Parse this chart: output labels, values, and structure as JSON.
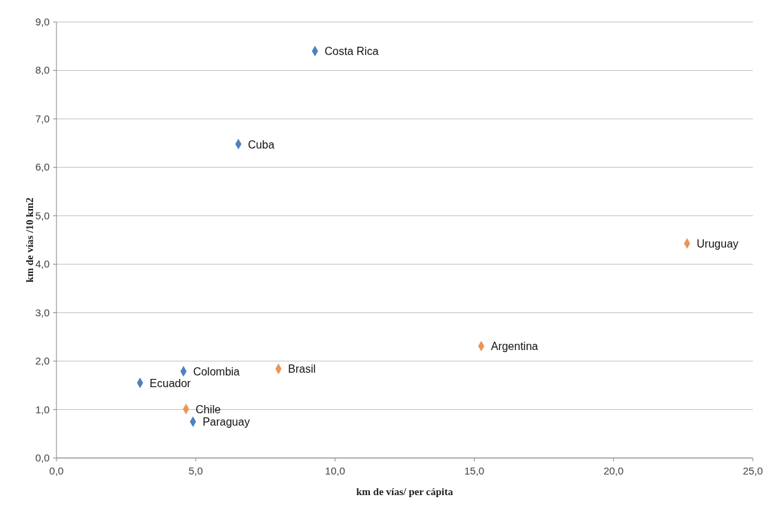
{
  "chart_data": {
    "type": "scatter",
    "xlabel": "km de vías/ per cápita",
    "ylabel": "km de vías /10 km2",
    "series": [
      {
        "color": "#4f81bd",
        "x": [
          9.28,
          6.53,
          4.56,
          3.0,
          4.9
        ],
        "values": [
          8.4,
          6.48,
          1.79,
          1.55,
          0.75
        ]
      },
      {
        "color": "#e9955a",
        "x": [
          22.64,
          15.25,
          7.97,
          4.65
        ],
        "values": [
          4.43,
          2.31,
          1.84,
          1.01
        ]
      }
    ],
    "annotations": [
      {
        "text": "Costa Rica",
        "x": 9.28,
        "y": 8.4
      },
      {
        "text": "Cuba",
        "x": 6.53,
        "y": 6.48
      },
      {
        "text": "Colombia",
        "x": 4.56,
        "y": 1.79
      },
      {
        "text": "Ecuador",
        "x": 3.0,
        "y": 1.55
      },
      {
        "text": "Paraguay",
        "x": 4.9,
        "y": 0.75
      },
      {
        "text": "Uruguay",
        "x": 22.64,
        "y": 4.43
      },
      {
        "text": "Argentina",
        "x": 15.25,
        "y": 2.31
      },
      {
        "text": "Brasil",
        "x": 7.97,
        "y": 1.84
      },
      {
        "text": "Chile",
        "x": 4.65,
        "y": 1.01
      }
    ],
    "xlim": [
      0,
      25
    ],
    "xticks": [
      {
        "value": 0,
        "label": "0,0"
      },
      {
        "value": 5,
        "label": "5,0"
      },
      {
        "value": 10,
        "label": "10,0"
      },
      {
        "value": 15,
        "label": "15,0"
      },
      {
        "value": 20,
        "label": "20,0"
      },
      {
        "value": 25,
        "label": "25,0"
      }
    ],
    "ylim": [
      0,
      9
    ],
    "yticks": [
      {
        "value": 0,
        "label": "0,0"
      },
      {
        "value": 1,
        "label": "1,0"
      },
      {
        "value": 2,
        "label": "2,0"
      },
      {
        "value": 3,
        "label": "3,0"
      },
      {
        "value": 4,
        "label": "4,0"
      },
      {
        "value": 5,
        "label": "5,0"
      },
      {
        "value": 6,
        "label": "6,0"
      },
      {
        "value": 7,
        "label": "7,0"
      },
      {
        "value": 8,
        "label": "8,0"
      },
      {
        "value": 9,
        "label": "9,0"
      }
    ],
    "grid": "y",
    "marker": "diamond"
  }
}
